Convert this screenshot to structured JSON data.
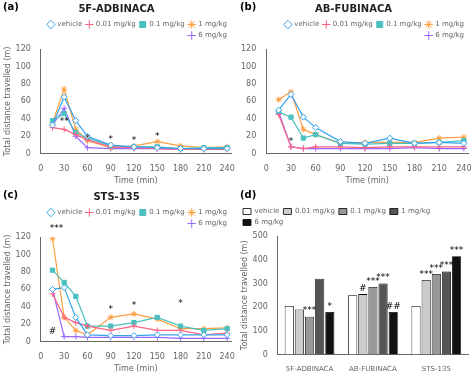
{
  "chart_data": [
    {
      "type": "line",
      "panel_label": "(a)",
      "title": "5F-ADBINACA",
      "xlabel": "Time (min)",
      "ylabel": "Total distance travelled (m)",
      "x": [
        15,
        30,
        45,
        60,
        90,
        120,
        150,
        180,
        210,
        240
      ],
      "series": [
        {
          "name": "vehicle",
          "marker": "diamond",
          "values": [
            33,
            65,
            38,
            20,
            10,
            8,
            7,
            6,
            6,
            6
          ]
        },
        {
          "name": "0.01 mg/kg",
          "marker": "plus",
          "values": [
            30,
            28,
            22,
            16,
            8,
            7,
            6,
            5,
            5,
            5
          ]
        },
        {
          "name": "0.1 mg/kg",
          "marker": "square",
          "values": [
            38,
            46,
            24,
            18,
            9,
            8,
            8,
            6,
            7,
            7
          ]
        },
        {
          "name": "1 mg/kg",
          "marker": "star",
          "values": [
            36,
            74,
            28,
            15,
            7,
            9,
            14,
            9,
            7,
            8
          ]
        },
        {
          "name": "6 mg/kg",
          "marker": "plus",
          "values": [
            33,
            52,
            20,
            7,
            6,
            6,
            6,
            5,
            6,
            6
          ]
        }
      ],
      "xlim": [
        0,
        245
      ],
      "xticks": [
        0,
        30,
        60,
        90,
        120,
        150,
        180,
        210,
        240
      ],
      "ylim": [
        0,
        120
      ],
      "yticks": [
        0,
        20,
        40,
        60,
        80,
        100,
        120
      ],
      "grid": false,
      "legend": "upper right",
      "annotations": [
        {
          "x": 30,
          "y": 32,
          "text": "**"
        },
        {
          "x": 60,
          "y": 12,
          "text": "*"
        },
        {
          "x": 90,
          "y": 11,
          "text": "*"
        },
        {
          "x": 120,
          "y": 10,
          "text": "*"
        },
        {
          "x": 150,
          "y": 15,
          "text": "*"
        }
      ]
    },
    {
      "type": "line",
      "panel_label": "(b)",
      "title": "AB-FUBINACA",
      "xlabel": "Time (min)",
      "x": [
        15,
        30,
        45,
        60,
        90,
        120,
        150,
        180,
        210,
        240
      ],
      "series": [
        {
          "name": "vehicle",
          "marker": "diamond",
          "values": [
            50,
            68,
            42,
            30,
            14,
            12,
            18,
            12,
            13,
            12
          ]
        },
        {
          "name": "0.01 mg/kg",
          "marker": "plus",
          "values": [
            45,
            8,
            6,
            8,
            8,
            7,
            8,
            8,
            8,
            8
          ]
        },
        {
          "name": "0.1 mg/kg",
          "marker": "square",
          "values": [
            48,
            42,
            18,
            22,
            12,
            11,
            12,
            12,
            13,
            15
          ]
        },
        {
          "name": "1 mg/kg",
          "marker": "star",
          "values": [
            62,
            71,
            28,
            22,
            12,
            13,
            13,
            13,
            18,
            19
          ]
        },
        {
          "name": "6 mg/kg",
          "marker": "plus",
          "values": [
            48,
            8,
            6,
            6,
            6,
            6,
            6,
            7,
            6,
            6
          ]
        }
      ],
      "xlim": [
        0,
        245
      ],
      "xticks": [
        0,
        30,
        60,
        90,
        120,
        150,
        180,
        210,
        240
      ],
      "ylim": [
        0,
        120
      ],
      "yticks": [
        0,
        20,
        40,
        60,
        80,
        100,
        120
      ],
      "grid": false,
      "legend": "upper right",
      "annotations": [
        {
          "x": 30,
          "y": 9,
          "text": "*"
        }
      ]
    },
    {
      "type": "line",
      "panel_label": "(c)",
      "title": "STS-135",
      "xlabel": "Time (min)",
      "ylabel": "Total distance travelled (m)",
      "x": [
        15,
        30,
        45,
        60,
        90,
        120,
        150,
        180,
        210,
        240
      ],
      "series": [
        {
          "name": "vehicle",
          "marker": "diamond",
          "values": [
            60,
            62,
            28,
            8,
            7,
            7,
            8,
            8,
            8,
            8
          ]
        },
        {
          "name": "0.01 mg/kg",
          "marker": "plus",
          "values": [
            55,
            28,
            22,
            18,
            13,
            18,
            13,
            13,
            8,
            10
          ]
        },
        {
          "name": "0.1 mg/kg",
          "marker": "square",
          "values": [
            82,
            68,
            52,
            18,
            18,
            22,
            28,
            18,
            13,
            15
          ]
        },
        {
          "name": "1 mg/kg",
          "marker": "star",
          "values": [
            118,
            28,
            13,
            8,
            28,
            32,
            26,
            15,
            15,
            16
          ]
        },
        {
          "name": "6 mg/kg",
          "marker": "plus",
          "values": [
            60,
            6,
            6,
            5,
            5,
            5,
            5,
            4,
            4,
            4
          ]
        }
      ],
      "xlim": [
        0,
        245
      ],
      "xticks": [
        0,
        30,
        60,
        90,
        120,
        150,
        180,
        210,
        240
      ],
      "ylim": [
        0,
        120
      ],
      "yticks": [
        0,
        20,
        40,
        60,
        80,
        100,
        120
      ],
      "grid": false,
      "legend": "upper right",
      "annotations": [
        {
          "x": 20,
          "y": 124,
          "text": "***"
        },
        {
          "x": 90,
          "y": 32,
          "text": "*"
        },
        {
          "x": 120,
          "y": 36,
          "text": "*"
        },
        {
          "x": 180,
          "y": 38,
          "text": "*"
        },
        {
          "x": 15,
          "y": 6,
          "text": "#"
        }
      ]
    },
    {
      "type": "bar",
      "panel_label": "(d)",
      "ylabel": "Total distance travelled (m)",
      "categories": [
        "5F-ADBINACA",
        "AB-FUBINACA",
        "STS-135"
      ],
      "series": [
        {
          "name": "vehicle",
          "color": "#ffffff",
          "values": [
            205,
            250,
            205
          ],
          "annotations": [
            null,
            null,
            null
          ]
        },
        {
          "name": "0.01 mg/kg",
          "color": "#cccccc",
          "values": [
            190,
            255,
            315
          ],
          "annotations": [
            null,
            "#",
            "***"
          ]
        },
        {
          "name": "0.1 mg/kg",
          "color": "#999999",
          "values": [
            160,
            285,
            340
          ],
          "annotations": [
            "***",
            "***",
            "***"
          ]
        },
        {
          "name": "1 mg/kg",
          "color": "#555555",
          "values": [
            320,
            300,
            350
          ],
          "annotations": [
            null,
            "***",
            "***"
          ]
        },
        {
          "name": "6 mg/kg",
          "color": "#111111",
          "values": [
            180,
            180,
            415
          ],
          "annotations": [
            "*",
            "##",
            "***"
          ]
        }
      ],
      "ylim": [
        0,
        500
      ],
      "yticks": [
        0,
        100,
        200,
        300,
        400,
        500
      ],
      "grid": false,
      "legend": "upper left"
    }
  ]
}
